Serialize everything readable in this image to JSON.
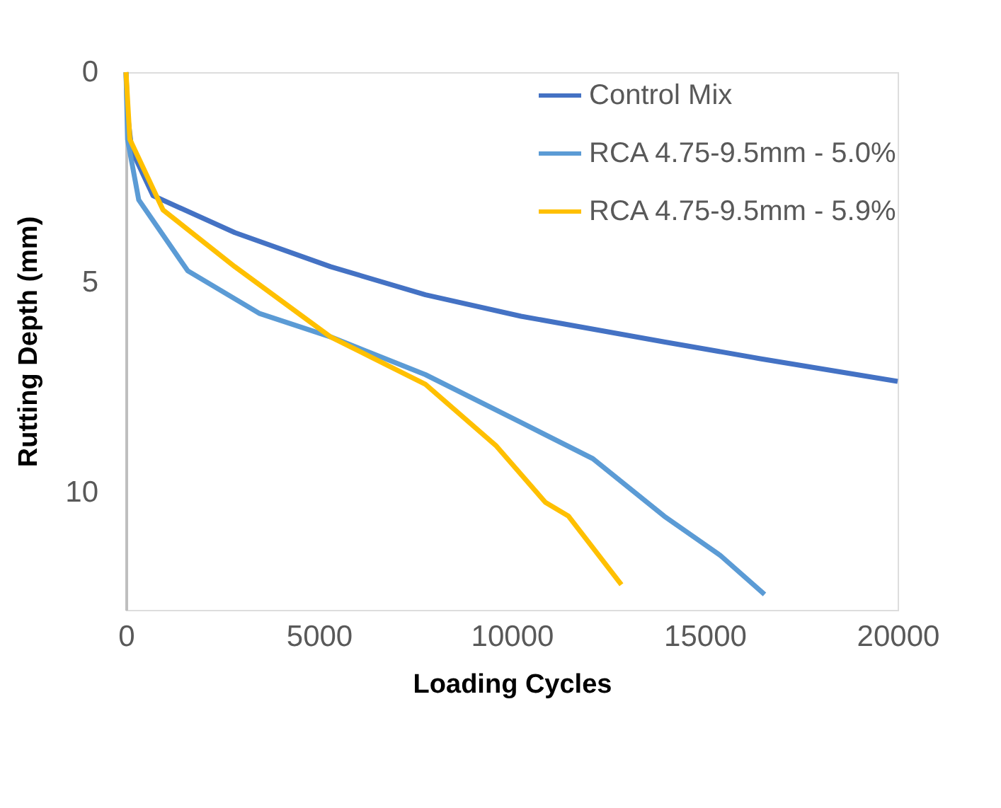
{
  "chart_data": {
    "type": "line",
    "xlabel": "Loading Cycles",
    "ylabel": "Rutting Depth (mm)",
    "xlim": [
      0,
      20000
    ],
    "xticks": [
      0,
      5000,
      10000,
      15000,
      20000
    ],
    "ylim": [
      12.8,
      0
    ],
    "yticks": [
      0,
      5,
      10
    ],
    "grid": false,
    "legend": "top right",
    "marker": "none",
    "line_style": "solid",
    "series": [
      {
        "name": "Control Mix",
        "color": "#4472c4",
        "x": [
          0,
          40,
          150,
          700,
          2820,
          5300,
          7760,
          10240,
          13950,
          16440,
          20000
        ],
        "values": [
          0,
          1.0,
          1.86,
          2.94,
          3.82,
          4.63,
          5.3,
          5.81,
          6.42,
          6.82,
          7.36
        ]
      },
      {
        "name": "RCA 4.75-9.5mm - 5.0%",
        "color": "#5b9bd5",
        "x": [
          0,
          40,
          330,
          1600,
          3450,
          5300,
          7760,
          10240,
          12100,
          13950,
          15400,
          16550
        ],
        "values": [
          0,
          1.6,
          3.04,
          4.73,
          5.74,
          6.3,
          7.2,
          8.34,
          9.2,
          10.57,
          11.5,
          12.43
        ]
      },
      {
        "name": "RCA 4.75-9.5mm - 5.9%",
        "color": "#ffc000",
        "x": [
          0,
          100,
          960,
          2820,
          5300,
          7760,
          9600,
          10870,
          11470,
          12840
        ],
        "values": [
          0,
          1.6,
          3.28,
          4.63,
          6.3,
          7.43,
          8.9,
          10.24,
          10.57,
          12.2
        ]
      }
    ]
  }
}
